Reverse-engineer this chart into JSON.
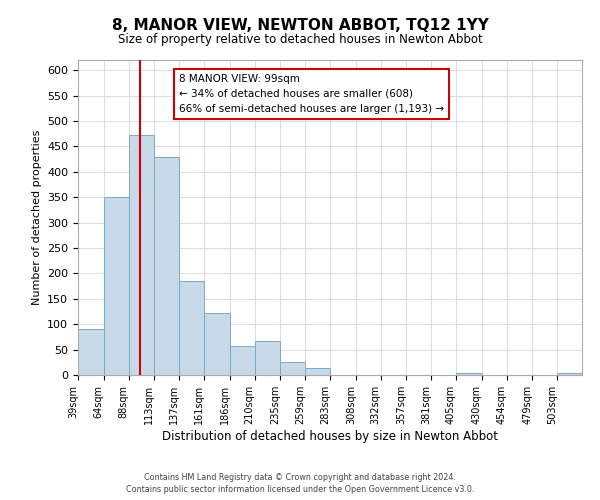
{
  "title": "8, MANOR VIEW, NEWTON ABBOT, TQ12 1YY",
  "subtitle": "Size of property relative to detached houses in Newton Abbot",
  "xlabel": "Distribution of detached houses by size in Newton Abbot",
  "ylabel": "Number of detached properties",
  "bar_color": "#c8daea",
  "bar_edgecolor": "#7aaac8",
  "background_color": "#ffffff",
  "grid_color": "#d0d8e4",
  "annotation_box_edgecolor": "#cc0000",
  "vline_color": "#cc0000",
  "vline_x": 99,
  "bins": [
    39,
    64,
    88,
    113,
    137,
    161,
    186,
    210,
    235,
    259,
    283,
    308,
    332,
    357,
    381,
    405,
    430,
    454,
    479,
    503,
    527
  ],
  "counts": [
    90,
    350,
    473,
    430,
    185,
    122,
    57,
    67,
    25,
    13,
    0,
    0,
    0,
    0,
    0,
    3,
    0,
    0,
    0,
    3
  ],
  "ylim": [
    0,
    620
  ],
  "yticks": [
    0,
    50,
    100,
    150,
    200,
    250,
    300,
    350,
    400,
    450,
    500,
    550,
    600
  ],
  "annotation_title": "8 MANOR VIEW: 99sqm",
  "annotation_line1": "← 34% of detached houses are smaller (608)",
  "annotation_line2": "66% of semi-detached houses are larger (1,193) →",
  "footer1": "Contains HM Land Registry data © Crown copyright and database right 2024.",
  "footer2": "Contains public sector information licensed under the Open Government Licence v3.0."
}
